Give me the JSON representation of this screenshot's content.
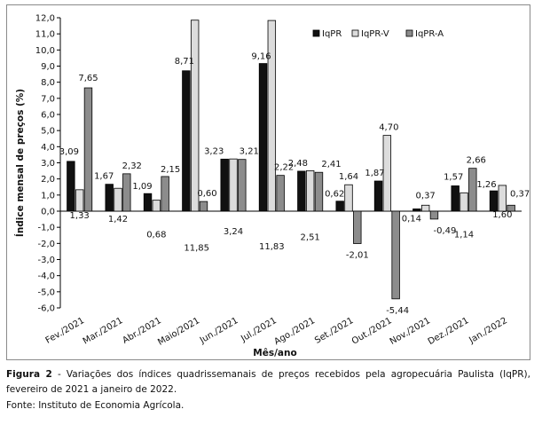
{
  "chart_data": {
    "type": "bar",
    "categories": [
      "Fev./2021",
      "Mar./2021",
      "Abr./2021",
      "Maio/2021",
      "Jun./2021",
      "Jul./2021",
      "Ago./2021",
      "Set./2021",
      "Out./2021",
      "Nov./2021",
      "Dez./2021",
      "Jan./2022"
    ],
    "series": [
      {
        "name": "IqPR",
        "color": "#111111",
        "values": [
          3.09,
          1.67,
          1.09,
          8.71,
          3.23,
          9.16,
          2.48,
          0.62,
          1.87,
          0.14,
          1.57,
          1.26
        ]
      },
      {
        "name": "IqPR-V",
        "color": "#dcdcdc",
        "values": [
          1.33,
          1.42,
          0.68,
          11.85,
          3.24,
          11.83,
          2.51,
          1.64,
          4.7,
          0.37,
          1.14,
          1.6
        ]
      },
      {
        "name": "IqPR-A",
        "color": "#8c8c8c",
        "values": [
          7.65,
          2.32,
          2.15,
          0.6,
          3.21,
          2.22,
          2.41,
          -2.01,
          -5.44,
          -0.49,
          2.66,
          0.37
        ]
      }
    ],
    "data_labels": [
      [
        "3,09",
        "1,33",
        "7,65"
      ],
      [
        "1,67",
        "1,42",
        "2,32"
      ],
      [
        "1,09",
        "0,68",
        "2,15"
      ],
      [
        "8,71",
        "11,85",
        "0,60"
      ],
      [
        "3,23",
        "3,24",
        "3,21"
      ],
      [
        "9,16",
        "11,83",
        "2,22"
      ],
      [
        "2,48",
        "2,51",
        "2,41"
      ],
      [
        "0,62",
        "1,64",
        "-2,01"
      ],
      [
        "1,87",
        "4,70",
        "-5,44"
      ],
      [
        "0,14",
        "0,37",
        "-0,49"
      ],
      [
        "1,57",
        "1,14",
        "2,66"
      ],
      [
        "1,26",
        "1,60",
        "0,37"
      ]
    ],
    "ylim": [
      -6,
      12
    ],
    "ytick_step": 1,
    "ytick_labels": [
      "-6,0",
      "-5,0",
      "-4,0",
      "-3,0",
      "-2,0",
      "-1,0",
      "0,0",
      "1,0",
      "2,0",
      "3,0",
      "4,0",
      "5,0",
      "6,0",
      "7,0",
      "8,0",
      "9,0",
      "10,0",
      "11,0",
      "12,0"
    ],
    "xlabel": "Mês/ano",
    "ylabel": "Índice mensal de preços (%)",
    "legend_position": "top-right",
    "grid": false
  },
  "caption": {
    "figure_label": "Figura 2",
    "text": " - Variações dos índices quadrissemanais de preços recebidos pela agropecuária Paulista (IqPR), fevereiro de 2021 a janeiro de 2022.",
    "source": "Fonte: Instituto de Economia Agrícola."
  }
}
